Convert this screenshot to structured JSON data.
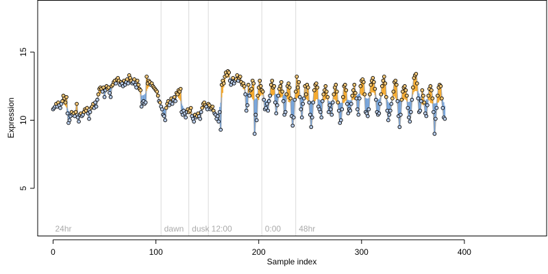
{
  "chart_data": {
    "type": "scatter",
    "xlabel": "Sample index",
    "ylabel": "Expression",
    "xlim": [
      -15,
      480
    ],
    "ylim": [
      1.5,
      18.8
    ],
    "xticks": [
      0,
      100,
      200,
      300,
      400
    ],
    "yticks": [
      5,
      10,
      15
    ],
    "grid": false,
    "colors": {
      "line": "#aaaaaa",
      "above": "#f5a623",
      "below": "#6f9fd8",
      "point_fill_high": "#f5c97a",
      "point_fill_low": "#b9cdea",
      "point_edge": "#000000",
      "divider": "#d9d9d9",
      "region_label": "#aaaaaa"
    },
    "regions": [
      {
        "label": "24hr",
        "x": 0
      },
      {
        "label": "dawn",
        "x": 106
      },
      {
        "label": "dusk",
        "x": 133
      },
      {
        "label": "12:00",
        "x": 152
      },
      {
        "label": "0:00",
        "x": 204
      },
      {
        "label": "48hr",
        "x": 237
      }
    ],
    "dividers": [
      105,
      132,
      151,
      203,
      236
    ],
    "y": [
      10.8,
      10.9,
      11.0,
      11.2,
      11.0,
      11.3,
      11.1,
      10.9,
      11.2,
      11.4,
      11.8,
      11.6,
      11.3,
      11.7,
      10.5,
      9.8,
      10.0,
      10.3,
      10.6,
      10.4,
      10.5,
      10.3,
      10.6,
      11.2,
      10.2,
      9.9,
      10.4,
      10.5,
      10.3,
      10.4,
      10.6,
      10.8,
      10.7,
      10.9,
      10.5,
      10.1,
      10.6,
      10.9,
      11.0,
      11.2,
      10.9,
      11.3,
      11.0,
      11.5,
      11.9,
      12.3,
      12.4,
      12.3,
      12.1,
      12.4,
      11.7,
      12.2,
      12.5,
      12.3,
      12.4,
      12.0,
      11.7,
      12.5,
      12.6,
      12.8,
      12.9,
      12.7,
      13.0,
      13.1,
      12.9,
      12.6,
      12.8,
      12.7,
      12.5,
      12.9,
      12.6,
      12.8,
      13.0,
      12.7,
      13.3,
      13.1,
      12.9,
      12.7,
      12.8,
      13.0,
      12.6,
      12.4,
      12.9,
      12.6,
      12.3,
      12.2,
      11.0,
      11.3,
      11.4,
      11.2,
      11.3,
      13.2,
      12.7,
      12.9,
      12.8,
      12.6,
      12.7,
      12.5,
      12.4,
      12.3,
      12.2,
      12.1,
      11.8,
      11.4,
      11.3,
      11.0,
      10.8,
      10.4,
      10.3,
      10.0,
      10.9,
      11.2,
      11.4,
      11.1,
      11.3,
      11.6,
      11.2,
      11.5,
      11.7,
      11.4,
      12.0,
      11.9,
      12.2,
      12.1,
      12.3,
      10.6,
      10.4,
      10.7,
      10.5,
      10.2,
      10.6,
      10.8,
      10.6,
      10.7,
      10.9,
      10.3,
      10.1,
      9.9,
      10.4,
      10.2,
      10.3,
      10.5,
      10.3,
      10.1,
      10.6,
      10.9,
      11.2,
      11.3,
      11.1,
      11.0,
      10.8,
      11.2,
      11.1,
      10.8,
      10.9,
      11.0,
      10.7,
      10.5,
      10.4,
      10.1,
      10.3,
      9.9,
      10.6,
      9.3,
      12.6,
      12.9,
      12.7,
      13.2,
      13.5,
      13.3,
      13.6,
      13.5,
      12.9,
      12.6,
      12.8,
      13.1,
      12.7,
      12.9,
      13.0,
      13.3,
      12.9,
      13.1,
      13.2,
      12.8,
      12.6,
      12.7,
      12.5,
      11.9,
      10.7,
      11.1,
      12.6,
      11.8,
      12.2,
      12.3,
      12.9,
      12.7,
      9.0,
      10.4,
      10.0,
      11.8,
      12.4,
      12.9,
      12.5,
      12.2,
      12.1,
      11.5,
      10.8,
      10.9,
      11.2,
      10.7,
      11.4,
      11.8,
      12.6,
      12.9,
      12.4,
      12.5,
      11.3,
      10.5,
      11.1,
      11.8,
      12.3,
      12.5,
      12.8,
      12.1,
      11.4,
      10.4,
      10.6,
      11.9,
      12.5,
      12.7,
      12.4,
      11.6,
      10.3,
      9.6,
      10.2,
      11.5,
      12.1,
      13.2,
      12.4,
      12.8,
      11.7,
      10.8,
      10.2,
      11.2,
      11.6,
      12.5,
      11.9,
      12.6,
      12.4,
      11.3,
      10.4,
      9.5,
      10.2,
      11.3,
      12.2,
      12.6,
      12.7,
      12.4,
      11.0,
      10.8,
      10.6,
      10.2,
      11.4,
      11.9,
      12.2,
      12.5,
      12.1,
      11.7,
      10.6,
      11.1,
      10.8,
      10.4,
      11.3,
      11.9,
      12.4,
      12.6,
      12.1,
      11.3,
      10.7,
      9.8,
      10.0,
      10.8,
      11.7,
      12.5,
      12.6,
      12.2,
      11.2,
      10.5,
      10.8,
      10.7,
      11.2,
      11.8,
      12.2,
      12.6,
      12.0,
      11.6,
      10.8,
      10.4,
      11.6,
      12.5,
      12.9,
      13.0,
      12.8,
      11.9,
      10.6,
      10.5,
      10.3,
      10.8,
      11.9,
      12.6,
      12.9,
      13.1,
      12.8,
      12.3,
      11.5,
      10.6,
      10.4,
      10.5,
      11.2,
      11.9,
      12.5,
      12.9,
      13.2,
      12.7,
      11.7,
      10.7,
      10.0,
      10.4,
      10.7,
      11.2,
      11.6,
      12.1,
      12.8,
      12.9,
      12.6,
      11.4,
      10.3,
      9.5,
      10.4,
      11.5,
      12.1,
      12.4,
      12.5,
      12.2,
      11.8,
      10.9,
      10.2,
      9.9,
      10.6,
      11.5,
      12.4,
      13.1,
      13.3,
      13.4,
      12.7,
      11.6,
      10.6,
      10.7,
      11.4,
      12.2,
      11.8,
      11.3,
      10.5,
      10.3,
      11.1,
      11.8,
      12.3,
      12.5,
      12.2,
      11.6,
      10.6,
      9.0,
      10.1,
      10.9,
      11.8,
      12.4,
      12.6,
      12.5,
      11.6,
      10.9,
      10.2,
      10.1
    ]
  }
}
